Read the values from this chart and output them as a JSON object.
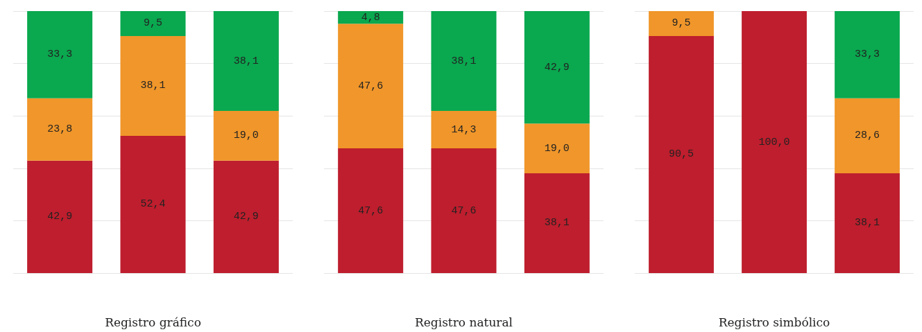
{
  "chart_data": [
    {
      "type": "bar",
      "stacked": true,
      "xlabel": "Registro gráfico",
      "categories": [
        null,
        null,
        null
      ],
      "ylim": [
        0,
        100
      ],
      "yticks": [
        {
          "value": 0,
          "label": null
        },
        {
          "value": 20,
          "label": null
        },
        {
          "value": 40,
          "label": null
        },
        {
          "value": 60,
          "label": null
        },
        {
          "value": 80,
          "label": null
        },
        {
          "value": 100,
          "label": null
        }
      ],
      "grid": "y",
      "series": [
        {
          "color": "#be1e2d",
          "values": [
            42.9,
            52.4,
            42.9
          ],
          "value_labels": [
            "42,9",
            "52,4",
            "42,9"
          ]
        },
        {
          "color": "#f0962a",
          "values": [
            23.8,
            38.1,
            19.0
          ],
          "value_labels": [
            "23,8",
            "38,1",
            "19,0"
          ]
        },
        {
          "color": "#0aa84f",
          "values": [
            33.3,
            9.5,
            38.1
          ],
          "value_labels": [
            "33,3",
            "9,5",
            "38,1"
          ]
        }
      ]
    },
    {
      "type": "bar",
      "stacked": true,
      "xlabel": "Registro natural",
      "categories": [
        null,
        null,
        null
      ],
      "ylim": [
        0,
        100
      ],
      "yticks": [
        {
          "value": 0,
          "label": null
        },
        {
          "value": 20,
          "label": null
        },
        {
          "value": 40,
          "label": null
        },
        {
          "value": 60,
          "label": null
        },
        {
          "value": 80,
          "label": null
        },
        {
          "value": 100,
          "label": null
        }
      ],
      "grid": "y",
      "series": [
        {
          "color": "#be1e2d",
          "values": [
            47.6,
            47.6,
            38.1
          ],
          "value_labels": [
            "47,6",
            "47,6",
            "38,1"
          ]
        },
        {
          "color": "#f0962a",
          "values": [
            47.6,
            14.3,
            19.0
          ],
          "value_labels": [
            "47,6",
            "14,3",
            "19,0"
          ]
        },
        {
          "color": "#0aa84f",
          "values": [
            4.8,
            38.1,
            42.9
          ],
          "value_labels": [
            "4,8",
            "38,1",
            "42,9"
          ]
        }
      ]
    },
    {
      "type": "bar",
      "stacked": true,
      "xlabel": "Registro simbólico",
      "categories": [
        null,
        null,
        null
      ],
      "ylim": [
        0,
        100
      ],
      "yticks": [
        {
          "value": 0,
          "label": null
        },
        {
          "value": 20,
          "label": null
        },
        {
          "value": 40,
          "label": null
        },
        {
          "value": 60,
          "label": null
        },
        {
          "value": 80,
          "label": null
        },
        {
          "value": 100,
          "label": null
        }
      ],
      "grid": "y",
      "series": [
        {
          "color": "#be1e2d",
          "values": [
            90.5,
            100.0,
            38.1
          ],
          "value_labels": [
            "90,5",
            "100,0",
            "38,1"
          ]
        },
        {
          "color": "#f0962a",
          "values": [
            9.5,
            null,
            28.6
          ],
          "value_labels": [
            "9,5",
            null,
            "28,6"
          ]
        },
        {
          "color": "#0aa84f",
          "values": [
            null,
            null,
            33.3
          ],
          "value_labels": [
            null,
            null,
            "33,3"
          ]
        }
      ]
    }
  ]
}
